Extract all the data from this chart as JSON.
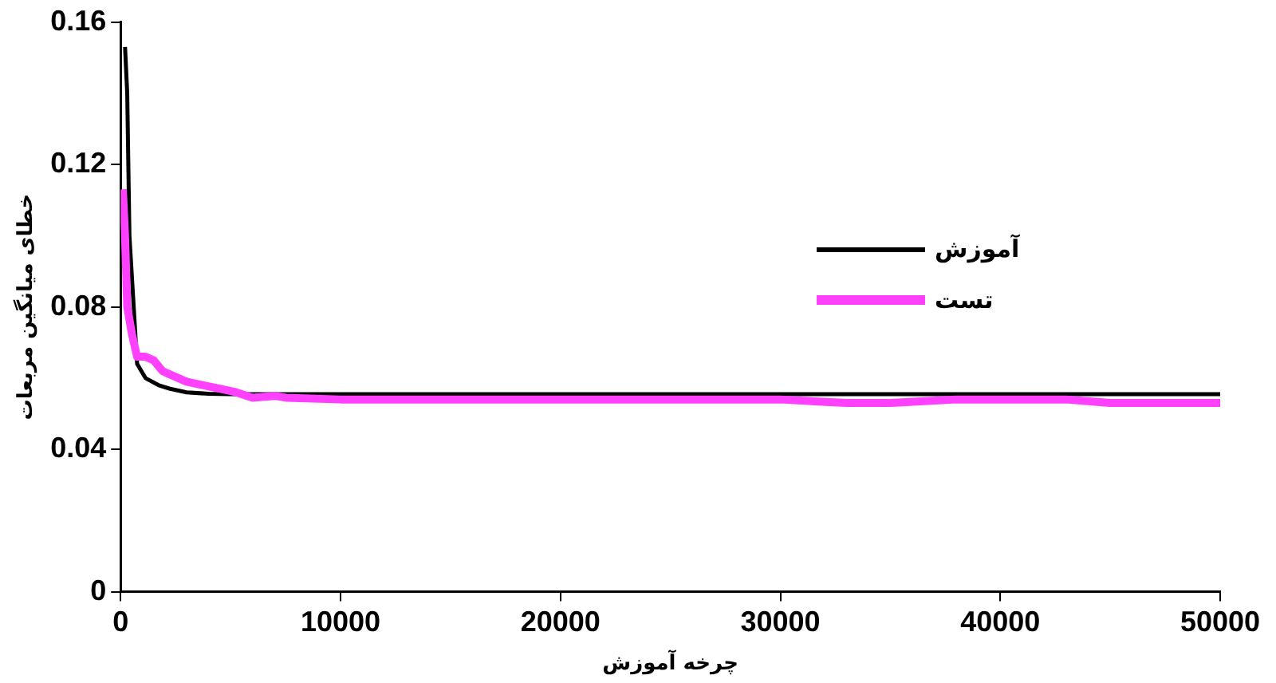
{
  "chart_data": {
    "type": "line",
    "xlabel": "چرخه آموزش",
    "ylabel": "خطای میانگین مربعات",
    "xlim": [
      0,
      50000
    ],
    "xticks": [
      0,
      10000,
      20000,
      30000,
      40000,
      50000
    ],
    "ylim": [
      0,
      0.16
    ],
    "yticks": [
      0,
      0.04,
      0.08,
      0.12,
      0.16
    ],
    "grid": false,
    "legend": "right",
    "marker": "none",
    "line_style": "solid",
    "series": [
      {
        "name": "آموزش",
        "color": "#000000",
        "x": [
          200,
          300,
          400,
          750,
          1130,
          1730,
          2250,
          3000,
          4000,
          5000,
          10000,
          20000,
          30000,
          40000,
          50000
        ],
        "values": [
          0.153,
          0.14,
          0.1,
          0.064,
          0.06,
          0.058,
          0.057,
          0.056,
          0.0556,
          0.0555,
          0.0555,
          0.0555,
          0.0555,
          0.0555,
          0.0555
        ]
      },
      {
        "name": "تست",
        "color": "#ff40ff",
        "x": [
          100,
          200,
          300,
          526,
          750,
          1130,
          1500,
          1900,
          2250,
          3000,
          3760,
          4500,
          5260,
          6000,
          7000,
          7520,
          10000,
          20000,
          30000,
          33000,
          35000,
          38000,
          40000,
          43000,
          45000,
          50000
        ],
        "values": [
          0.113,
          0.1,
          0.08,
          0.072,
          0.066,
          0.066,
          0.065,
          0.062,
          0.061,
          0.059,
          0.058,
          0.057,
          0.056,
          0.0545,
          0.055,
          0.0545,
          0.054,
          0.054,
          0.054,
          0.053,
          0.053,
          0.054,
          0.054,
          0.054,
          0.053,
          0.053
        ]
      }
    ]
  }
}
